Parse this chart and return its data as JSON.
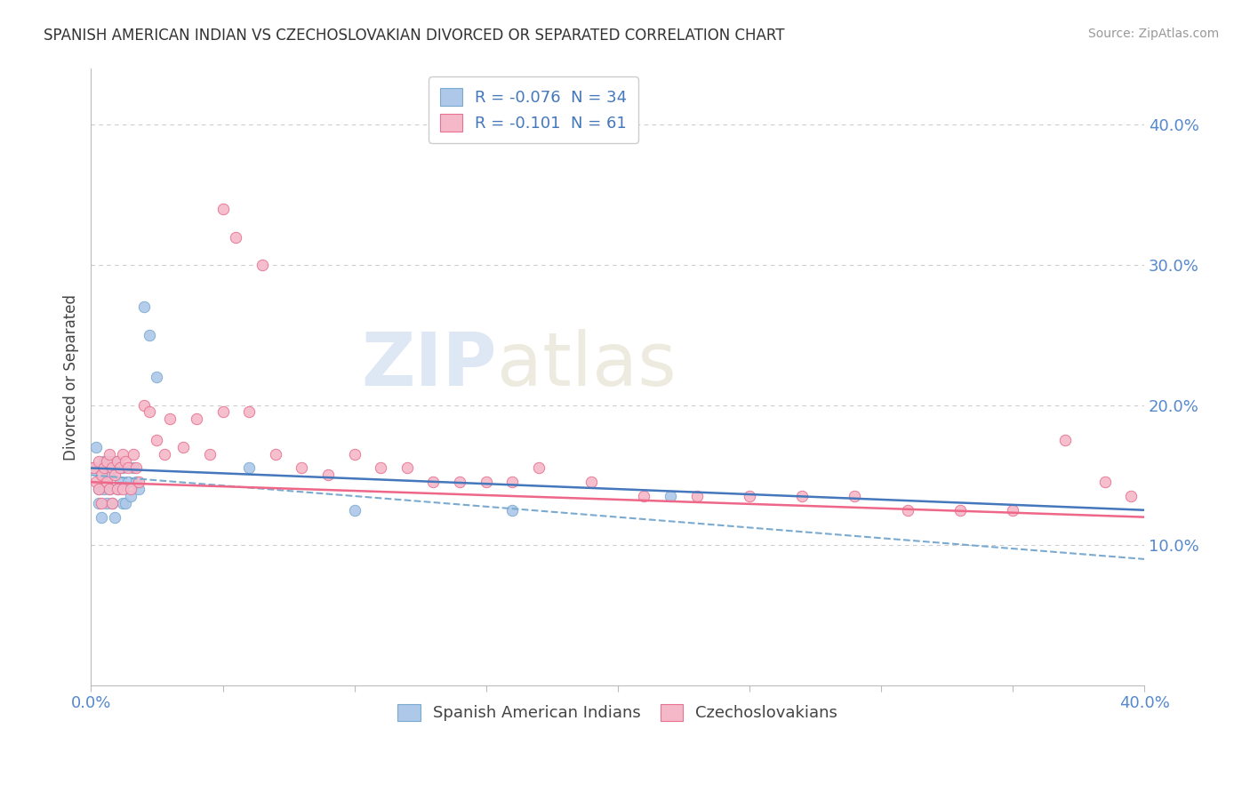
{
  "title": "SPANISH AMERICAN INDIAN VS CZECHOSLOVAKIAN DIVORCED OR SEPARATED CORRELATION CHART",
  "source": "Source: ZipAtlas.com",
  "ylabel": "Divorced or Separated",
  "ylabel_right_ticks": [
    "10.0%",
    "20.0%",
    "30.0%",
    "40.0%"
  ],
  "legend_label1": "R = -0.076  N = 34",
  "legend_label2": "R = -0.101  N = 61",
  "legend_label_bottom1": "Spanish American Indians",
  "legend_label_bottom2": "Czechoslovakians",
  "color_blue": "#adc8e8",
  "color_pink": "#f5b8c8",
  "edge_blue": "#7aaad0",
  "edge_pink": "#e87090",
  "line_blue_color": "#4477bb",
  "line_pink_color": "#ee6688",
  "watermark1": "ZIP",
  "watermark2": "atlas",
  "xlim": [
    0.0,
    0.4
  ],
  "ylim": [
    0.0,
    0.44
  ],
  "blue_points_x": [
    0.001,
    0.002,
    0.003,
    0.003,
    0.004,
    0.004,
    0.005,
    0.005,
    0.006,
    0.006,
    0.007,
    0.007,
    0.008,
    0.008,
    0.009,
    0.009,
    0.01,
    0.01,
    0.011,
    0.012,
    0.012,
    0.013,
    0.014,
    0.015,
    0.016,
    0.017,
    0.018,
    0.02,
    0.022,
    0.025,
    0.06,
    0.1,
    0.16,
    0.22
  ],
  "blue_points_y": [
    0.155,
    0.17,
    0.14,
    0.13,
    0.15,
    0.12,
    0.14,
    0.16,
    0.155,
    0.13,
    0.15,
    0.14,
    0.16,
    0.13,
    0.155,
    0.12,
    0.14,
    0.16,
    0.145,
    0.13,
    0.155,
    0.13,
    0.145,
    0.135,
    0.155,
    0.145,
    0.14,
    0.27,
    0.25,
    0.22,
    0.155,
    0.125,
    0.125,
    0.135
  ],
  "pink_points_x": [
    0.001,
    0.002,
    0.003,
    0.003,
    0.004,
    0.004,
    0.005,
    0.006,
    0.006,
    0.007,
    0.007,
    0.008,
    0.008,
    0.009,
    0.01,
    0.01,
    0.011,
    0.012,
    0.012,
    0.013,
    0.014,
    0.015,
    0.016,
    0.017,
    0.018,
    0.02,
    0.022,
    0.025,
    0.028,
    0.03,
    0.035,
    0.04,
    0.045,
    0.05,
    0.06,
    0.07,
    0.08,
    0.09,
    0.1,
    0.11,
    0.12,
    0.13,
    0.14,
    0.15,
    0.16,
    0.17,
    0.19,
    0.21,
    0.23,
    0.25,
    0.27,
    0.29,
    0.31,
    0.33,
    0.35,
    0.37,
    0.385,
    0.395,
    0.05,
    0.055,
    0.065
  ],
  "pink_points_y": [
    0.155,
    0.145,
    0.16,
    0.14,
    0.15,
    0.13,
    0.155,
    0.16,
    0.145,
    0.165,
    0.14,
    0.155,
    0.13,
    0.15,
    0.16,
    0.14,
    0.155,
    0.165,
    0.14,
    0.16,
    0.155,
    0.14,
    0.165,
    0.155,
    0.145,
    0.2,
    0.195,
    0.175,
    0.165,
    0.19,
    0.17,
    0.19,
    0.165,
    0.195,
    0.195,
    0.165,
    0.155,
    0.15,
    0.165,
    0.155,
    0.155,
    0.145,
    0.145,
    0.145,
    0.145,
    0.155,
    0.145,
    0.135,
    0.135,
    0.135,
    0.135,
    0.135,
    0.125,
    0.125,
    0.125,
    0.175,
    0.145,
    0.135,
    0.34,
    0.32,
    0.3
  ]
}
